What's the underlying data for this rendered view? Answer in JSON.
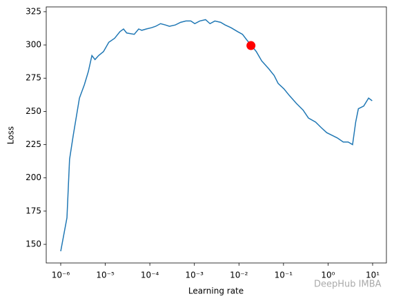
{
  "chart_data": {
    "type": "line",
    "xlabel": "Learning rate",
    "ylabel": "Loss",
    "xscale": "log",
    "color": "#1f77b4",
    "x": [
      1e-06,
      1.38e-06,
      1.58e-06,
      1.91e-06,
      2.63e-06,
      3.39e-06,
      4.17e-06,
      5.01e-06,
      5.89e-06,
      7.08e-06,
      9.12e-06,
      1.2e-05,
      1.62e-05,
      2.14e-05,
      2.57e-05,
      3.02e-05,
      4.47e-05,
      5.62e-05,
      6.61e-05,
      8.32e-05,
      0.00011,
      0.000135,
      0.000174,
      0.000224,
      0.000275,
      0.000372,
      0.00049,
      0.000646,
      0.000832,
      0.00102,
      0.00132,
      0.00178,
      0.00224,
      0.00288,
      0.00389,
      0.0049,
      0.00661,
      0.00933,
      0.012,
      0.0148,
      0.0186,
      0.0245,
      0.0324,
      0.0468,
      0.0617,
      0.0759,
      0.102,
      0.135,
      0.195,
      0.275,
      0.363,
      0.525,
      0.692,
      0.933,
      1.23,
      1.62,
      2.19,
      2.82,
      3.55,
      4.17,
      4.79,
      6.31,
      8.13,
      9.77
    ],
    "values": [
      144.8,
      170,
      214,
      232,
      260,
      270,
      280,
      292,
      289,
      292,
      295,
      302,
      305,
      310,
      312,
      309,
      308,
      312,
      311,
      312,
      313,
      314,
      316,
      315,
      314,
      315,
      317,
      318,
      318,
      316,
      318,
      319,
      316,
      318,
      317,
      315,
      313,
      310,
      308,
      304,
      300,
      295,
      288,
      282,
      277,
      271,
      267,
      262,
      256,
      251,
      245,
      242,
      238,
      234,
      232,
      230,
      227,
      227,
      225,
      242,
      252,
      254,
      260,
      258
    ],
    "marker": {
      "x": 0.0186,
      "y": 299.5,
      "color": "#ff0000"
    },
    "xlim": [
      4.73e-07,
      20.4
    ],
    "ylim": [
      136,
      328.6
    ],
    "xticks": [
      {
        "value": 1e-06,
        "label": "10⁻⁶"
      },
      {
        "value": 1e-05,
        "label": "10⁻⁵"
      },
      {
        "value": 0.0001,
        "label": "10⁻⁴"
      },
      {
        "value": 0.001,
        "label": "10⁻³"
      },
      {
        "value": 0.01,
        "label": "10⁻²"
      },
      {
        "value": 0.1,
        "label": "10⁻¹"
      },
      {
        "value": 1,
        "label": "10⁰"
      },
      {
        "value": 10,
        "label": "10¹"
      }
    ],
    "yticks": [
      150,
      175,
      200,
      225,
      250,
      275,
      300,
      325
    ],
    "grid": false,
    "watermark": "DeepHub IMBA"
  }
}
